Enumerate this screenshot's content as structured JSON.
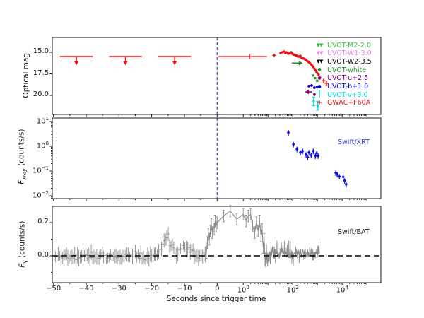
{
  "figure": {
    "bg": "#ffffff",
    "axis_color": "#1a1a1a"
  },
  "xaxis": {
    "label": "Seconds since trigger time",
    "scale": "symlog",
    "linear_tick_values": [
      -50,
      -40,
      -30,
      -20,
      -10,
      0
    ],
    "linear_tick_labels": [
      "−50",
      "−40",
      "−30",
      "−20",
      "−10",
      "0"
    ],
    "log_tick_values": [
      1,
      100,
      10000
    ],
    "log_tick_labels": [
      {
        "base": "10",
        "exp": "0"
      },
      {
        "base": "10",
        "exp": "2"
      },
      {
        "base": "10",
        "exp": "4"
      }
    ],
    "trigger_time": 0
  },
  "trigger_line_color": "#4545c8",
  "chart_data": [
    {
      "type": "scatter",
      "name": "optical-panel",
      "ylabel": "Optical mag",
      "y_inverted": true,
      "ylim": [
        13.3,
        22.3
      ],
      "ytick_values": [
        15.0,
        17.5,
        20.0
      ],
      "ytick_labels": [
        "15.0",
        "17.5",
        "20.0"
      ],
      "trigger_line": true,
      "legend": [
        {
          "label": "UVOT-M2-2.0",
          "color": "#2eb82e",
          "marker": "tri2"
        },
        {
          "label": "UVOT-W1-3.0",
          "color": "#ee82ee",
          "marker": "tri2"
        },
        {
          "label": "UVOT-W2-3.5",
          "color": "#000000",
          "marker": "tri2"
        },
        {
          "label": "UVOT-white",
          "color": "#228b22",
          "marker": "dot"
        },
        {
          "label": "UVOT-u+2.5",
          "color": "#800080",
          "marker": "dot"
        },
        {
          "label": "UVOT-b+1.0",
          "color": "#0000cd",
          "marker": "dot"
        },
        {
          "label": "UVOT-v+3.0",
          "color": "#00dde6",
          "marker": "vbar"
        },
        {
          "label": "GWAC+F60A",
          "color": "#dc1c1c",
          "marker": "plus"
        }
      ],
      "series": {
        "gwac": {
          "name": "GWAC+F60A",
          "color": "#ee1111",
          "upper_limits": [
            {
              "t": -43,
              "mag": 15.5,
              "t_err": 5
            },
            {
              "t": -28,
              "mag": 15.5,
              "t_err": 5
            },
            {
              "t": -13,
              "mag": 15.5,
              "t_err": 5
            }
          ],
          "crosses": [
            {
              "t": 1.8,
              "mag": 15.5,
              "t_lo": 0.05,
              "t_hi": 9,
              "mag_err": 0.25
            },
            {
              "t": 18,
              "mag": 15.35,
              "mag_err": 0.2
            },
            {
              "t": 1770,
              "mag": 18.3,
              "mag_err": 0.25
            },
            {
              "t": 2300,
              "mag": 18.6,
              "mag_err": 0.3
            }
          ],
          "points": [
            [
              32,
              15.08
            ],
            [
              38,
              15.0
            ],
            [
              45,
              14.92
            ],
            [
              50,
              15.1
            ],
            [
              54,
              15.0
            ],
            [
              60,
              15.05
            ],
            [
              66,
              15.16
            ],
            [
              75,
              15.1
            ],
            [
              86,
              15.0
            ],
            [
              95,
              15.15
            ],
            [
              105,
              15.25
            ],
            [
              115,
              15.28
            ],
            [
              128,
              15.33
            ],
            [
              140,
              15.38
            ],
            [
              155,
              15.45
            ],
            [
              167,
              15.5
            ],
            [
              185,
              15.5
            ],
            [
              202,
              15.4
            ],
            [
              215,
              15.55
            ],
            [
              230,
              15.66
            ],
            [
              250,
              15.7
            ],
            [
              282,
              15.74
            ],
            [
              310,
              15.8
            ],
            [
              341,
              15.9
            ],
            [
              380,
              16.0
            ],
            [
              417,
              16.07
            ],
            [
              460,
              16.18
            ],
            [
              510,
              16.3
            ],
            [
              560,
              16.42
            ],
            [
              615,
              16.56
            ],
            [
              680,
              16.7
            ],
            [
              755,
              16.9
            ],
            [
              840,
              17.1
            ],
            [
              921,
              17.3
            ],
            [
              1000,
              17.45
            ],
            [
              1120,
              17.6
            ],
            [
              1280,
              17.95
            ]
          ]
        },
        "uvot_white": {
          "name": "UVOT-white",
          "color": "#228b22",
          "points": [
            [
              660,
              17.7
            ],
            [
              800,
              18.0
            ],
            [
              975,
              18.3
            ]
          ],
          "arrow": {
            "t_from": 92,
            "t_to": 250,
            "mag": 16.25,
            "dir": "right"
          }
        },
        "uvot_b": {
          "name": "UVOT-b+1.0",
          "color": "#0000cd",
          "points": [
            [
              450,
              18.93
            ],
            [
              580,
              18.85
            ],
            [
              755,
              19.1
            ],
            [
              975,
              19.0
            ]
          ]
        },
        "uvot_u": {
          "name": "UVOT-u+2.5",
          "color": "#800080",
          "points": [
            [
              755,
              19.9
            ]
          ],
          "arrow": {
            "t_from": 620,
            "t_to": 320,
            "mag": 19.6,
            "dir": "left"
          }
        },
        "uvot_v": {
          "name": "UVOT-v+3.0",
          "color": "#00dde6",
          "points": [
            {
              "t": 710,
              "mag": 20.7,
              "err": 0.5
            },
            {
              "t": 1030,
              "mag": 21.2,
              "err": 0.5
            }
          ]
        }
      }
    },
    {
      "type": "scatter",
      "name": "xray-panel",
      "ylabel": {
        "var": "F",
        "sub": "xray",
        "rest": " (counts/s)"
      },
      "yscale": "log",
      "ylim_log": [
        -2,
        1
      ],
      "ytick_labels": [
        {
          "base": "10",
          "exp": "1"
        },
        {
          "base": "10",
          "exp": "0"
        },
        {
          "base": "10",
          "exp": "−1"
        },
        {
          "base": "10",
          "exp": "−2"
        }
      ],
      "trigger_line": true,
      "annotation": {
        "text": "Swift/XRT",
        "color": "#3a3ac8"
      },
      "series_color": "#0f0fe0",
      "points": [
        [
          67,
          3.6
        ],
        [
          107,
          1.2
        ],
        [
          148,
          0.77
        ],
        [
          205,
          0.56
        ],
        [
          251,
          0.64
        ],
        [
          347,
          0.46
        ],
        [
          400,
          0.36
        ],
        [
          455,
          0.56
        ],
        [
          555,
          0.44
        ],
        [
          677,
          0.64
        ],
        [
          825,
          0.41
        ],
        [
          938,
          0.53
        ],
        [
          1066,
          0.41
        ],
        [
          5540,
          0.083
        ],
        [
          6320,
          0.073
        ],
        [
          7740,
          0.06
        ],
        [
          11000,
          0.058
        ],
        [
          12600,
          0.041
        ],
        [
          14500,
          0.029
        ]
      ],
      "yerr_fraction": 0.25
    },
    {
      "type": "line",
      "name": "gamma-panel",
      "ylabel": {
        "var": "F",
        "sub": "γ",
        "rest": " (counts/s)"
      },
      "ytick_values": [
        0.2,
        0.0
      ],
      "ytick_labels": [
        "0.2",
        "0.0"
      ],
      "ylim": [
        -0.17,
        0.29
      ],
      "zero_line": 0.0,
      "annotation": {
        "text": "Swift/BAT",
        "color": "#111111"
      },
      "series_color": "#8c8c8c",
      "noise": {
        "linear_region": {
          "t_start": -49.8,
          "t_end": -3.4,
          "step": 0.42,
          "std": 0.035,
          "bumps": [
            {
              "t0": -15.2,
              "amp": 0.12,
              "sigma": 1.3
            },
            {
              "t0": -9.3,
              "amp": 0.07,
              "sigma": 1.5
            }
          ]
        },
        "log_region": {
          "logt_start": 0.88,
          "logt_end": 3.08,
          "n": 330,
          "mean": 0.015,
          "std": 0.048
        }
      },
      "burst_profile": [
        [
          -3.3,
          0.02
        ],
        [
          -3.0,
          0.08
        ],
        [
          -2.7,
          0.13
        ],
        [
          -2.4,
          0.1
        ],
        [
          -2.1,
          0.15
        ],
        [
          -1.8,
          0.19
        ],
        [
          -1.5,
          0.14
        ],
        [
          -1.2,
          0.18
        ],
        [
          -0.9,
          0.16
        ],
        [
          -0.6,
          0.21
        ],
        [
          -0.3,
          0.18
        ],
        [
          0.0,
          0.2
        ],
        [
          0.25,
          0.24
        ],
        [
          0.5,
          0.27
        ],
        [
          0.75,
          0.22
        ],
        [
          1.0,
          0.25
        ],
        [
          1.3,
          0.21
        ],
        [
          1.6,
          0.24
        ],
        [
          2.0,
          0.25
        ],
        [
          2.4,
          0.18
        ],
        [
          2.9,
          0.14
        ],
        [
          3.4,
          0.2
        ],
        [
          4.0,
          0.15
        ],
        [
          4.6,
          0.21
        ],
        [
          5.2,
          0.12
        ],
        [
          5.8,
          0.16
        ],
        [
          6.4,
          0.05
        ],
        [
          7.0,
          0.1
        ],
        [
          7.6,
          -0.02
        ]
      ]
    }
  ]
}
